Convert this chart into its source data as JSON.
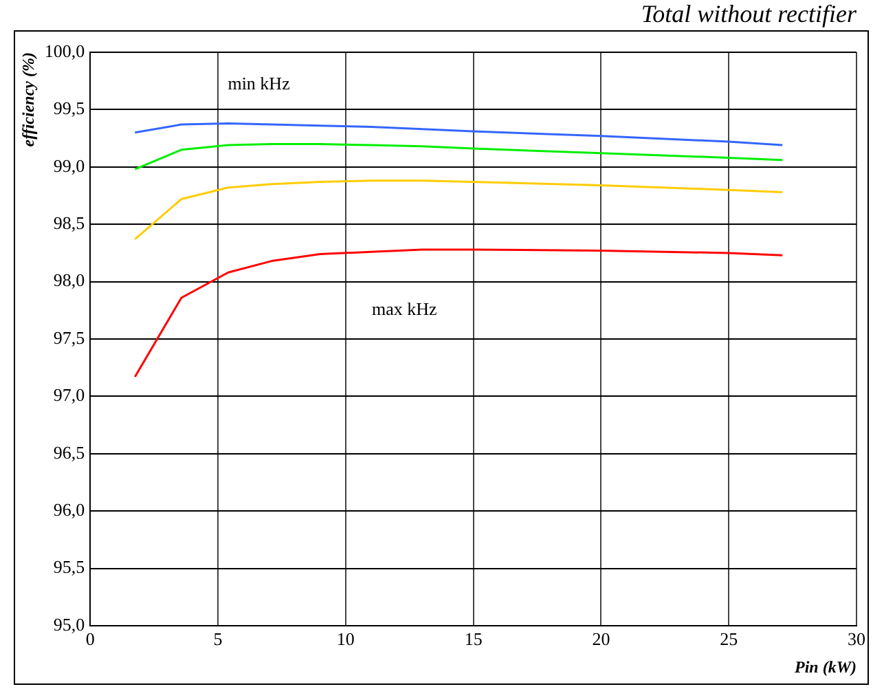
{
  "chart_data": {
    "type": "line",
    "title": "Total without rectifier",
    "xlabel": "Pin (kW)",
    "ylabel": "efficiency (%)",
    "x": [
      1.75,
      3.57,
      5.4,
      7.1,
      9,
      11,
      13,
      15,
      20,
      25,
      27.1
    ],
    "series": [
      {
        "color": "#3366ff",
        "values": [
          99.3,
          99.37,
          99.38,
          99.37,
          99.36,
          99.35,
          99.33,
          99.31,
          99.27,
          99.22,
          99.19
        ]
      },
      {
        "color": "#00ee00",
        "values": [
          98.98,
          99.15,
          99.19,
          99.2,
          99.2,
          99.19,
          99.18,
          99.16,
          99.12,
          99.08,
          99.06
        ]
      },
      {
        "color": "#ffcc00",
        "values": [
          98.37,
          98.72,
          98.82,
          98.85,
          98.87,
          98.88,
          98.88,
          98.87,
          98.84,
          98.8,
          98.78
        ]
      },
      {
        "color": "#ff0000",
        "values": [
          97.17,
          97.86,
          98.08,
          98.18,
          98.24,
          98.26,
          98.28,
          98.28,
          98.27,
          98.25,
          98.23
        ]
      }
    ],
    "annotations": [
      "min kHz",
      "max kHz"
    ],
    "xlim": [
      0,
      30
    ],
    "xticks": [
      0,
      5,
      10,
      15,
      20,
      25,
      30
    ],
    "ylim": [
      95,
      100
    ],
    "yticks": [
      {
        "value": 95,
        "label": "95,0"
      },
      {
        "value": 95.5,
        "label": "95,5"
      },
      {
        "value": 96,
        "label": "96,0"
      },
      {
        "value": 96.5,
        "label": "96,5"
      },
      {
        "value": 97,
        "label": "97,0"
      },
      {
        "value": 97.5,
        "label": "97,5"
      },
      {
        "value": 98,
        "label": "98,0"
      },
      {
        "value": 98.5,
        "label": "98,5"
      },
      {
        "value": 99,
        "label": "99,0"
      },
      {
        "value": 99.5,
        "label": "99,5"
      },
      {
        "value": 100,
        "label": "100,0"
      }
    ],
    "grid": true,
    "legend": false,
    "marker": "none",
    "line_style": "solid"
  }
}
